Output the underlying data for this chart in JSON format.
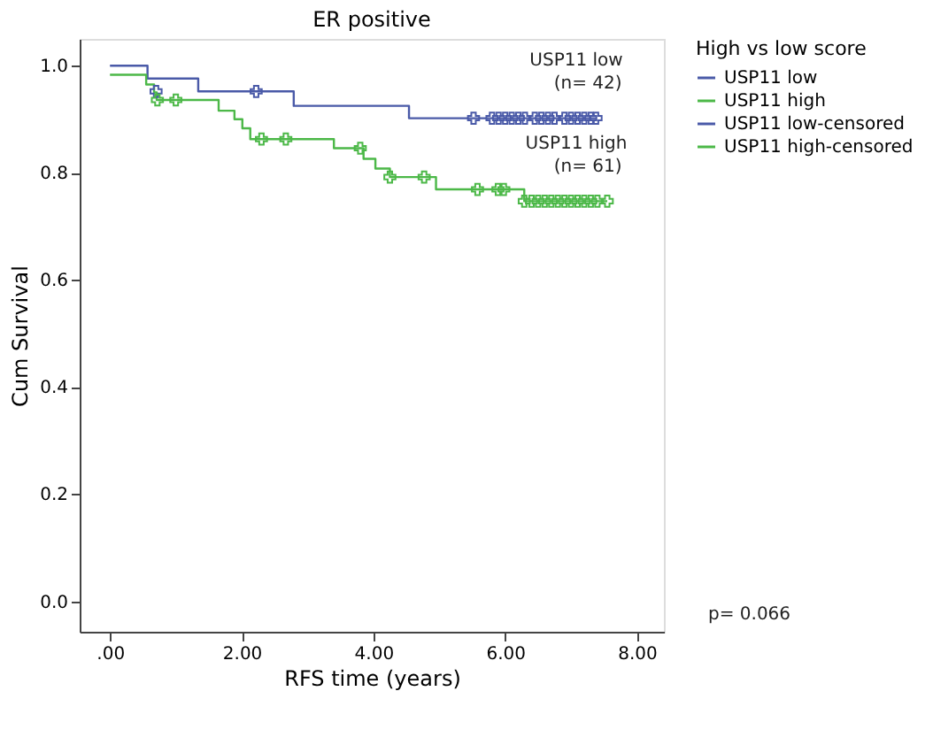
{
  "chart_data": {
    "type": "step",
    "title": "ER positive",
    "xlabel": "RFS time (years)",
    "ylabel": "Cum Survival",
    "legend_title": "High vs low score",
    "xlim": [
      -0.46,
      8.41
    ],
    "ylim": [
      -0.057,
      1.05
    ],
    "xticks": [
      {
        "value": 0,
        "label": ".00"
      },
      {
        "value": 2,
        "label": "2.00"
      },
      {
        "value": 4,
        "label": "4.00"
      },
      {
        "value": 6,
        "label": "6.00"
      },
      {
        "value": 8,
        "label": "8.00"
      }
    ],
    "yticks": [
      {
        "value": 0,
        "label": "0.0"
      },
      {
        "value": 0.2,
        "label": "0.2"
      },
      {
        "value": 0.4,
        "label": "0.4"
      },
      {
        "value": 0.6,
        "label": "0.6"
      },
      {
        "value": 0.8,
        "label": "0.8"
      },
      {
        "value": 1,
        "label": "1.0"
      }
    ],
    "grid": false,
    "legend": "top right",
    "line_style": "solid",
    "series": [
      {
        "name": "USP11 low",
        "color": "#4a5aa8",
        "x": [
          0,
          0.57,
          1.34,
          2.79,
          4.54,
          7.38
        ],
        "values": [
          1.0,
          0.976,
          0.952,
          0.925,
          0.902,
          0.902
        ]
      },
      {
        "name": "USP11 high",
        "color": "#4cb848",
        "x": [
          0,
          0.55,
          0.67,
          0.71,
          1.65,
          1.89,
          2.01,
          2.13,
          3.4,
          3.85,
          4.03,
          4.25,
          4.95,
          6.29,
          7.55
        ],
        "values": [
          0.983,
          0.965,
          0.95,
          0.936,
          0.916,
          0.9,
          0.883,
          0.863,
          0.846,
          0.826,
          0.808,
          0.792,
          0.769,
          0.747,
          0.747
        ]
      },
      {
        "name": "USP11 low-censored",
        "type": "scatter",
        "marker": "cross",
        "color": "#4a5aa8",
        "x": [
          0.7,
          2.22,
          5.52,
          5.8,
          5.9,
          6.0,
          6.1,
          6.2,
          6.3,
          6.45,
          6.55,
          6.65,
          6.75,
          6.9,
          7.0,
          7.1,
          7.2,
          7.3,
          7.38
        ],
        "values": [
          0.952,
          0.952,
          0.902,
          0.902,
          0.902,
          0.902,
          0.902,
          0.902,
          0.902,
          0.902,
          0.902,
          0.902,
          0.902,
          0.902,
          0.902,
          0.902,
          0.902,
          0.902,
          0.902
        ]
      },
      {
        "name": "USP11 high-censored",
        "type": "scatter",
        "marker": "cross",
        "color": "#4cb848",
        "x": [
          0.72,
          1.0,
          2.3,
          2.67,
          3.8,
          4.25,
          4.77,
          5.58,
          5.89,
          5.98,
          6.29,
          6.4,
          6.5,
          6.6,
          6.7,
          6.8,
          6.9,
          7.0,
          7.1,
          7.2,
          7.3,
          7.4,
          7.55
        ],
        "values": [
          0.936,
          0.936,
          0.863,
          0.863,
          0.846,
          0.792,
          0.792,
          0.769,
          0.769,
          0.769,
          0.747,
          0.747,
          0.747,
          0.747,
          0.747,
          0.747,
          0.747,
          0.747,
          0.747,
          0.747,
          0.747,
          0.747,
          0.747
        ]
      }
    ],
    "annotations": [
      "USP11 low",
      "(n= 42)",
      "USP11 high",
      "(n= 61)",
      "p= 0.066"
    ]
  }
}
